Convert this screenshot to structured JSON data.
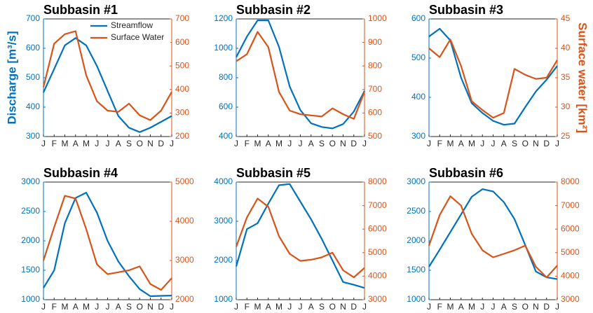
{
  "chart_data": [
    {
      "type": "line",
      "title": "Subbasin #1",
      "ylabel": "Discharge [m³/s]",
      "legend": "upper right",
      "categories": [
        "J",
        "F",
        "M",
        "A",
        "M",
        "J",
        "J",
        "A",
        "S",
        "O",
        "N",
        "D",
        "J"
      ],
      "series": [
        {
          "name": "Streamflow",
          "color": "#0072BD",
          "values": [
            450,
            530,
            610,
            635,
            610,
            540,
            455,
            370,
            330,
            315,
            330,
            350,
            370
          ]
        },
        {
          "name": "Surface Water",
          "color": "#D95319",
          "axis": "y2",
          "values": [
            410,
            595,
            635,
            648,
            460,
            350,
            310,
            305,
            340,
            290,
            270,
            310,
            390
          ]
        }
      ],
      "ylim": [
        300,
        700
      ],
      "yticks": [
        300,
        400,
        500,
        600,
        700
      ],
      "y2lim": [
        200,
        700
      ],
      "y2ticks": [
        200,
        300,
        400,
        500,
        600,
        700
      ]
    },
    {
      "type": "line",
      "title": "Subbasin #2",
      "categories": [
        "J",
        "F",
        "M",
        "A",
        "M",
        "J",
        "J",
        "A",
        "S",
        "O",
        "N",
        "D",
        "J"
      ],
      "series": [
        {
          "color": "#0072BD",
          "values": [
            940,
            1080,
            1190,
            1190,
            1010,
            740,
            580,
            490,
            465,
            455,
            485,
            570,
            710
          ]
        },
        {
          "color": "#D95319",
          "axis": "y2",
          "values": [
            820,
            850,
            945,
            880,
            690,
            610,
            595,
            590,
            585,
            620,
            595,
            575,
            690
          ]
        }
      ],
      "ylim": [
        400,
        1200
      ],
      "yticks": [
        400,
        600,
        800,
        1000,
        1200
      ],
      "y2lim": [
        500,
        1000
      ],
      "y2ticks": [
        500,
        600,
        700,
        800,
        900,
        1000
      ]
    },
    {
      "type": "line",
      "title": "Subbasin #3",
      "y2label": "Surface water [km²]",
      "categories": [
        "J",
        "F",
        "M",
        "A",
        "M",
        "J",
        "J",
        "A",
        "S",
        "O",
        "N",
        "D",
        "J"
      ],
      "series": [
        {
          "color": "#0072BD",
          "values": [
            555,
            575,
            545,
            450,
            385,
            360,
            340,
            330,
            333,
            375,
            415,
            445,
            480
          ]
        },
        {
          "color": "#D95319",
          "axis": "y2",
          "values": [
            40,
            38.5,
            41.5,
            37,
            31,
            29.5,
            28.2,
            29,
            36.5,
            35.5,
            34.8,
            35,
            38
          ]
        }
      ],
      "ylim": [
        300,
        600
      ],
      "yticks": [
        300,
        400,
        500,
        600
      ],
      "y2lim": [
        25,
        45
      ],
      "y2ticks": [
        25,
        30,
        35,
        40,
        45
      ]
    },
    {
      "type": "line",
      "title": "Subbasin #4",
      "categories": [
        "J",
        "F",
        "M",
        "A",
        "M",
        "J",
        "J",
        "A",
        "S",
        "O",
        "N",
        "D",
        "J"
      ],
      "series": [
        {
          "color": "#0072BD",
          "values": [
            1200,
            1500,
            2300,
            2730,
            2820,
            2480,
            2000,
            1650,
            1400,
            1180,
            1060,
            1065,
            1070
          ]
        },
        {
          "color": "#D95319",
          "axis": "y2",
          "values": [
            3000,
            3850,
            4650,
            4580,
            3800,
            2900,
            2650,
            2700,
            2750,
            2850,
            2400,
            2250,
            2550
          ]
        }
      ],
      "ylim": [
        1000,
        3000
      ],
      "yticks": [
        1000,
        1500,
        2000,
        2500,
        3000
      ],
      "y2lim": [
        2000,
        5000
      ],
      "y2ticks": [
        2000,
        3000,
        4000,
        5000
      ]
    },
    {
      "type": "line",
      "title": "Subbasin #5",
      "categories": [
        "J",
        "F",
        "M",
        "A",
        "M",
        "J",
        "J",
        "A",
        "S",
        "O",
        "N",
        "D",
        "J"
      ],
      "series": [
        {
          "color": "#0072BD",
          "values": [
            1850,
            2800,
            2950,
            3450,
            3920,
            3950,
            3500,
            3050,
            2550,
            2000,
            1450,
            1380,
            1300
          ]
        },
        {
          "color": "#D95319",
          "axis": "y2",
          "values": [
            5250,
            6500,
            7300,
            6950,
            5700,
            4950,
            4650,
            4700,
            4800,
            5000,
            4250,
            3950,
            4350
          ]
        }
      ],
      "ylim": [
        1000,
        4000
      ],
      "yticks": [
        1000,
        2000,
        3000,
        4000
      ],
      "y2lim": [
        3000,
        8000
      ],
      "y2ticks": [
        3000,
        4000,
        5000,
        6000,
        7000,
        8000
      ]
    },
    {
      "type": "line",
      "title": "Subbasin #6",
      "categories": [
        "J",
        "F",
        "M",
        "A",
        "M",
        "J",
        "J",
        "A",
        "S",
        "O",
        "N",
        "D",
        "J"
      ],
      "series": [
        {
          "color": "#0072BD",
          "values": [
            1560,
            1850,
            2150,
            2450,
            2750,
            2880,
            2840,
            2660,
            2370,
            1930,
            1480,
            1380,
            1350
          ]
        },
        {
          "color": "#D95319",
          "axis": "y2",
          "values": [
            5300,
            6600,
            7400,
            7000,
            5800,
            5100,
            4800,
            4950,
            5100,
            5300,
            4400,
            3950,
            4450
          ]
        }
      ],
      "ylim": [
        1000,
        3000
      ],
      "yticks": [
        1000,
        1500,
        2000,
        2500,
        3000
      ],
      "y2lim": [
        3000,
        8000
      ],
      "y2ticks": [
        3000,
        4000,
        5000,
        6000,
        7000,
        8000
      ]
    }
  ]
}
